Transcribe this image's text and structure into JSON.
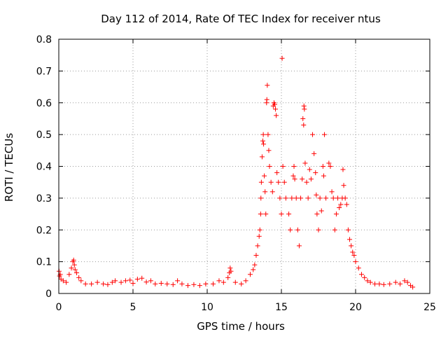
{
  "chart_data": {
    "type": "scatter",
    "title": "Day 112 of 2014, Rate Of TEC Index for receiver ntus",
    "xlabel": "GPS time / hours",
    "ylabel": "ROTI / TECUs",
    "xlim": [
      0,
      25
    ],
    "ylim": [
      0,
      0.8
    ],
    "x_ticks": [
      0,
      5,
      10,
      15,
      20,
      25
    ],
    "x_tick_labels": [
      "0",
      "5",
      "10",
      "15",
      "20",
      "25"
    ],
    "y_ticks": [
      0,
      0.1,
      0.2,
      0.3,
      0.4,
      0.5,
      0.6,
      0.7,
      0.8
    ],
    "y_tick_labels": [
      "0",
      "0.1",
      "0.2",
      "0.3",
      "0.4",
      "0.5",
      "0.6",
      "0.7",
      "0.8"
    ],
    "grid": true,
    "marker": "+",
    "color": "#ff0000",
    "series": [
      {
        "name": "ROTI",
        "points": [
          [
            0.02,
            0.07
          ],
          [
            0.05,
            0.055
          ],
          [
            0.1,
            0.06
          ],
          [
            0.15,
            0.045
          ],
          [
            0.3,
            0.04
          ],
          [
            0.5,
            0.035
          ],
          [
            0.7,
            0.06
          ],
          [
            0.85,
            0.08
          ],
          [
            0.95,
            0.1
          ],
          [
            1.0,
            0.105
          ],
          [
            1.05,
            0.09
          ],
          [
            1.1,
            0.075
          ],
          [
            1.2,
            0.065
          ],
          [
            1.35,
            0.05
          ],
          [
            1.5,
            0.04
          ],
          [
            1.8,
            0.03
          ],
          [
            2.2,
            0.03
          ],
          [
            2.6,
            0.035
          ],
          [
            3.0,
            0.03
          ],
          [
            3.3,
            0.028
          ],
          [
            3.6,
            0.035
          ],
          [
            3.8,
            0.04
          ],
          [
            4.2,
            0.035
          ],
          [
            4.5,
            0.04
          ],
          [
            4.8,
            0.042
          ],
          [
            5.0,
            0.032
          ],
          [
            5.3,
            0.045
          ],
          [
            5.6,
            0.048
          ],
          [
            5.9,
            0.036
          ],
          [
            6.2,
            0.04
          ],
          [
            6.5,
            0.03
          ],
          [
            6.9,
            0.032
          ],
          [
            7.3,
            0.03
          ],
          [
            7.7,
            0.028
          ],
          [
            8.0,
            0.04
          ],
          [
            8.3,
            0.03
          ],
          [
            8.7,
            0.025
          ],
          [
            9.1,
            0.028
          ],
          [
            9.5,
            0.025
          ],
          [
            9.9,
            0.03
          ],
          [
            10.4,
            0.03
          ],
          [
            10.8,
            0.04
          ],
          [
            11.1,
            0.035
          ],
          [
            11.4,
            0.05
          ],
          [
            11.5,
            0.065
          ],
          [
            11.55,
            0.08
          ],
          [
            11.6,
            0.07
          ],
          [
            11.9,
            0.035
          ],
          [
            12.3,
            0.03
          ],
          [
            12.6,
            0.04
          ],
          [
            12.9,
            0.06
          ],
          [
            13.1,
            0.075
          ],
          [
            13.2,
            0.09
          ],
          [
            13.3,
            0.12
          ],
          [
            13.4,
            0.15
          ],
          [
            13.5,
            0.18
          ],
          [
            13.55,
            0.2
          ],
          [
            13.6,
            0.25
          ],
          [
            13.62,
            0.3
          ],
          [
            13.65,
            0.35
          ],
          [
            13.7,
            0.43
          ],
          [
            13.75,
            0.48
          ],
          [
            13.78,
            0.5
          ],
          [
            13.8,
            0.47
          ],
          [
            13.85,
            0.37
          ],
          [
            13.9,
            0.32
          ],
          [
            13.95,
            0.25
          ],
          [
            14.0,
            0.6
          ],
          [
            14.02,
            0.61
          ],
          [
            14.05,
            0.655
          ],
          [
            14.1,
            0.5
          ],
          [
            14.15,
            0.45
          ],
          [
            14.2,
            0.4
          ],
          [
            14.3,
            0.35
          ],
          [
            14.4,
            0.32
          ],
          [
            14.45,
            0.59
          ],
          [
            14.5,
            0.6
          ],
          [
            14.55,
            0.595
          ],
          [
            14.6,
            0.58
          ],
          [
            14.65,
            0.56
          ],
          [
            14.7,
            0.38
          ],
          [
            14.8,
            0.35
          ],
          [
            14.9,
            0.3
          ],
          [
            15.0,
            0.25
          ],
          [
            15.05,
            0.74
          ],
          [
            15.1,
            0.4
          ],
          [
            15.2,
            0.35
          ],
          [
            15.3,
            0.3
          ],
          [
            15.5,
            0.25
          ],
          [
            15.6,
            0.2
          ],
          [
            15.7,
            0.3
          ],
          [
            15.8,
            0.37
          ],
          [
            15.85,
            0.4
          ],
          [
            15.9,
            0.36
          ],
          [
            16.0,
            0.3
          ],
          [
            16.1,
            0.2
          ],
          [
            16.2,
            0.15
          ],
          [
            16.3,
            0.3
          ],
          [
            16.4,
            0.36
          ],
          [
            16.45,
            0.55
          ],
          [
            16.5,
            0.53
          ],
          [
            16.52,
            0.59
          ],
          [
            16.55,
            0.58
          ],
          [
            16.6,
            0.41
          ],
          [
            16.7,
            0.35
          ],
          [
            16.8,
            0.3
          ],
          [
            16.9,
            0.39
          ],
          [
            17.0,
            0.36
          ],
          [
            17.1,
            0.5
          ],
          [
            17.2,
            0.44
          ],
          [
            17.3,
            0.38
          ],
          [
            17.35,
            0.31
          ],
          [
            17.4,
            0.25
          ],
          [
            17.5,
            0.2
          ],
          [
            17.6,
            0.3
          ],
          [
            17.7,
            0.26
          ],
          [
            17.8,
            0.4
          ],
          [
            17.85,
            0.37
          ],
          [
            17.9,
            0.5
          ],
          [
            18.0,
            0.3
          ],
          [
            18.2,
            0.41
          ],
          [
            18.3,
            0.4
          ],
          [
            18.4,
            0.32
          ],
          [
            18.5,
            0.3
          ],
          [
            18.6,
            0.2
          ],
          [
            18.7,
            0.25
          ],
          [
            18.8,
            0.3
          ],
          [
            18.9,
            0.27
          ],
          [
            19.0,
            0.28
          ],
          [
            19.1,
            0.3
          ],
          [
            19.15,
            0.39
          ],
          [
            19.2,
            0.34
          ],
          [
            19.3,
            0.3
          ],
          [
            19.4,
            0.28
          ],
          [
            19.5,
            0.2
          ],
          [
            19.6,
            0.17
          ],
          [
            19.7,
            0.15
          ],
          [
            19.8,
            0.13
          ],
          [
            19.9,
            0.12
          ],
          [
            20.0,
            0.1
          ],
          [
            20.2,
            0.08
          ],
          [
            20.4,
            0.06
          ],
          [
            20.6,
            0.05
          ],
          [
            20.8,
            0.04
          ],
          [
            21.0,
            0.035
          ],
          [
            21.3,
            0.03
          ],
          [
            21.6,
            0.03
          ],
          [
            21.9,
            0.028
          ],
          [
            22.3,
            0.03
          ],
          [
            22.7,
            0.035
          ],
          [
            23.0,
            0.03
          ],
          [
            23.3,
            0.04
          ],
          [
            23.5,
            0.035
          ],
          [
            23.7,
            0.025
          ],
          [
            23.85,
            0.02
          ]
        ]
      }
    ]
  }
}
